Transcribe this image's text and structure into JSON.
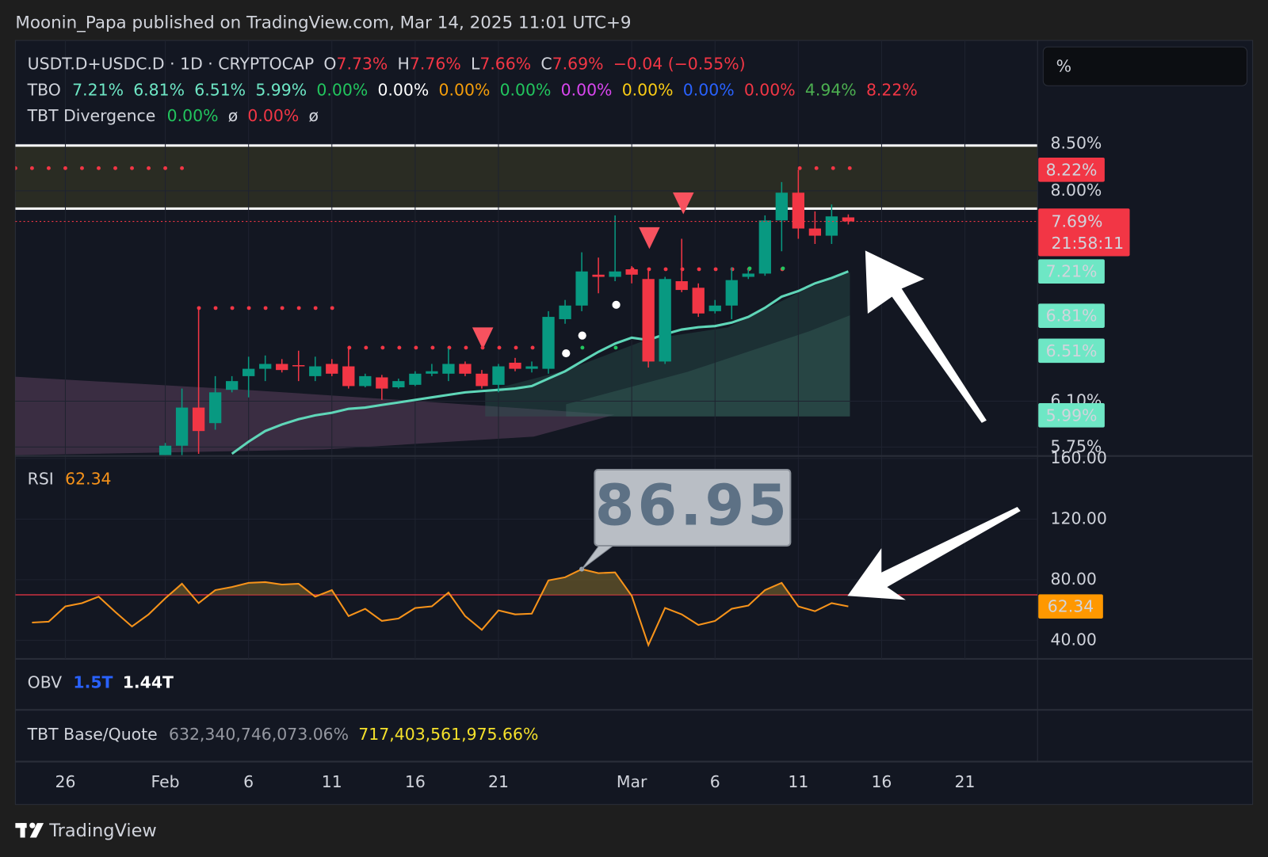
{
  "header": {
    "published": "Moonin_Papa published on TradingView.com, Mar 14, 2025 11:01 UTC+9"
  },
  "scale_box": "%",
  "legend": {
    "symbol": "USDT.D+USDC.D · 1D · CRYPTOCAP",
    "o_label": "O",
    "o": "7.73%",
    "h_label": "H",
    "h": "7.76%",
    "l_label": "L",
    "l": "7.66%",
    "c_label": "C",
    "c": "7.69%",
    "change": "−0.04 (−0.55%)",
    "color": "#f23645"
  },
  "tbo": {
    "label": "TBO",
    "items": [
      {
        "label": "7.21%",
        "value": 7.21,
        "color": "#6ee7c5"
      },
      {
        "label": "6.81%",
        "value": 6.81,
        "color": "#6ee7c5"
      },
      {
        "label": "6.51%",
        "value": 6.51,
        "color": "#6ee7c5"
      },
      {
        "label": "5.99%",
        "value": 5.99,
        "color": "#6ee7c5"
      },
      {
        "label": "0.00%",
        "color": "#22c55e"
      },
      {
        "label": "0.00%",
        "color": "#ffffff"
      },
      {
        "label": "0.00%",
        "color": "#f59e0b"
      },
      {
        "label": "0.00%",
        "color": "#22c55e"
      },
      {
        "label": "0.00%",
        "color": "#d946ef"
      },
      {
        "label": "0.00%",
        "color": "#facc15"
      },
      {
        "label": "0.00%",
        "color": "#2962ff"
      },
      {
        "label": "0.00%",
        "color": "#f23645"
      },
      {
        "label": "4.94%",
        "color": "#4caf50"
      },
      {
        "label": "8.22%",
        "value": 8.22,
        "color": "#f23645"
      }
    ]
  },
  "tbt_divergence": {
    "label": "TBT Divergence",
    "items": [
      {
        "label": "0.00%",
        "color": "#22c55e"
      },
      {
        "label": "ø",
        "color": "#d1d4dc"
      },
      {
        "label": "0.00%",
        "color": "#f23645"
      },
      {
        "label": "ø",
        "color": "#d1d4dc"
      }
    ]
  },
  "obv": {
    "label": "OBV",
    "items": [
      {
        "label": "1.5T",
        "color": "#2962ff"
      },
      {
        "label": "1.44T",
        "color": "#ffffff"
      }
    ]
  },
  "tbt_base_quote": {
    "label": "TBT Base/Quote",
    "items": [
      {
        "label": "632,340,746,073.06%",
        "color": "#9598a1"
      },
      {
        "label": "717,403,561,975.66%",
        "color": "#f5e12b"
      }
    ]
  },
  "footer": {
    "brand": "TradingView"
  },
  "chart_data": [
    {
      "type": "candlestick",
      "categories": [
        null,
        null,
        "26",
        null,
        null,
        null,
        null,
        null,
        "Feb",
        null,
        null,
        null,
        null,
        "6",
        null,
        null,
        null,
        null,
        "11",
        null,
        null,
        null,
        null,
        "16",
        null,
        null,
        null,
        null,
        "21",
        null,
        null,
        null,
        null,
        null,
        null,
        null,
        "Mar",
        null,
        null,
        null,
        null,
        "6",
        null,
        null,
        null,
        null,
        "11",
        null,
        null,
        null,
        null,
        "16",
        null,
        null,
        null,
        null,
        "21",
        null,
        null,
        null,
        null
      ],
      "open": [
        null,
        null,
        null,
        null,
        null,
        null,
        null,
        null,
        5.69,
        5.76,
        6.05,
        5.93,
        6.19,
        6.3,
        6.36,
        6.4,
        6.39,
        6.3,
        6.4,
        6.38,
        6.22,
        6.29,
        6.21,
        6.23,
        6.32,
        6.32,
        6.4,
        6.32,
        6.23,
        6.41,
        6.36,
        6.36,
        6.78,
        6.9,
        7.18,
        7.16,
        7.23,
        7.14,
        6.42,
        7.12,
        7.06,
        6.85,
        6.9,
        7.16,
        7.19,
        7.7,
        7.98,
        7.62,
        7.55,
        7.73,
        null,
        null,
        null,
        null,
        null,
        null,
        null,
        null,
        null,
        null,
        null
      ],
      "high": [
        null,
        null,
        null,
        null,
        null,
        null,
        null,
        null,
        5.78,
        6.2,
        6.88,
        6.3,
        6.3,
        6.46,
        6.47,
        6.44,
        6.51,
        6.46,
        6.44,
        6.53,
        6.32,
        6.31,
        6.28,
        6.34,
        6.4,
        6.53,
        6.42,
        6.35,
        6.4,
        6.45,
        6.42,
        6.85,
        6.95,
        7.39,
        7.34,
        7.75,
        7.26,
        7.24,
        7.16,
        7.52,
        7.1,
        6.95,
        7.25,
        7.23,
        7.75,
        8.09,
        8.22,
        7.79,
        7.86,
        7.76,
        null,
        null,
        null,
        null,
        null,
        null,
        null,
        null,
        null,
        null,
        null
      ],
      "low": [
        null,
        null,
        null,
        null,
        null,
        null,
        null,
        null,
        5.67,
        5.69,
        5.7,
        5.88,
        6.17,
        6.13,
        6.26,
        6.33,
        6.26,
        6.26,
        6.3,
        6.2,
        6.21,
        6.11,
        6.2,
        6.22,
        6.3,
        6.26,
        6.3,
        6.2,
        6.17,
        6.34,
        6.33,
        6.32,
        6.74,
        6.85,
        7.01,
        7.12,
        7.1,
        6.37,
        6.4,
        7.02,
        6.8,
        6.83,
        6.78,
        7.14,
        7.17,
        7.4,
        7.52,
        7.47,
        7.47,
        7.66,
        null,
        null,
        null,
        null,
        null,
        null,
        null,
        null,
        null,
        null,
        null
      ],
      "close": [
        null,
        null,
        null,
        null,
        null,
        null,
        null,
        null,
        5.76,
        6.05,
        5.87,
        6.17,
        6.26,
        6.36,
        6.4,
        6.35,
        6.38,
        6.38,
        6.32,
        6.22,
        6.3,
        6.2,
        6.26,
        6.32,
        6.34,
        6.4,
        6.32,
        6.22,
        6.38,
        6.36,
        6.38,
        6.8,
        6.9,
        7.21,
        7.16,
        7.21,
        7.18,
        6.42,
        7.14,
        7.04,
        6.83,
        6.9,
        7.13,
        7.19,
        7.7,
        7.98,
        7.62,
        7.55,
        7.74,
        7.69,
        null,
        null,
        null,
        null,
        null,
        null,
        null,
        null,
        null,
        null,
        null
      ],
      "up_color": "#089981",
      "down_color": "#f23645",
      "overlay": {
        "color": "#5fd6b8",
        "values": [
          null,
          null,
          null,
          null,
          null,
          null,
          null,
          null,
          null,
          null,
          null,
          null,
          5.7,
          5.79,
          5.87,
          5.92,
          5.96,
          5.99,
          6.01,
          6.04,
          6.05,
          6.07,
          6.09,
          6.11,
          6.13,
          6.15,
          6.17,
          6.18,
          6.19,
          6.2,
          6.22,
          6.28,
          6.34,
          6.42,
          6.5,
          6.57,
          6.62,
          6.6,
          6.65,
          6.69,
          6.71,
          6.72,
          6.75,
          6.8,
          6.88,
          6.98,
          7.03,
          7.1,
          7.15,
          7.21,
          null,
          null,
          null,
          null,
          null,
          null,
          null,
          null,
          null,
          null,
          null
        ]
      },
      "countdown": "21:58:11",
      "log_scale": true,
      "ylim": [
        5.69,
        9.71
      ],
      "yticks": [
        {
          "value": 5.75,
          "label": "5.75%"
        },
        {
          "value": 6.1,
          "label": "6.10%"
        },
        {
          "value": 8,
          "label": "8.00%"
        },
        {
          "value": 8.5,
          "label": "8.50%"
        }
      ],
      "grid": true
    },
    {
      "type": "line",
      "title": "RSI",
      "color": "#f7931a",
      "values": [
        51.7,
        52.3,
        62.4,
        64.5,
        68.8,
        58.7,
        49.1,
        57.1,
        67.7,
        77.3,
        64.5,
        73.1,
        75.2,
        77.9,
        78.4,
        76.8,
        77.3,
        68.8,
        73.1,
        56.0,
        60.8,
        52.8,
        54.4,
        61.3,
        62.4,
        71.5,
        56.0,
        46.9,
        59.7,
        57.1,
        57.6,
        79.5,
        81.6,
        86.95,
        84.3,
        84.8,
        69.3,
        36.8,
        61.3,
        57.1,
        50.1,
        52.8,
        60.8,
        62.9,
        73.1,
        77.9,
        62.4,
        59.2,
        64.5,
        62.34,
        null,
        null,
        null,
        null,
        null,
        null,
        null,
        null,
        null,
        null,
        null
      ],
      "value_labels": [
        null,
        null,
        null,
        null,
        null,
        null,
        null,
        null,
        null,
        null,
        null,
        null,
        null,
        null,
        null,
        null,
        null,
        null,
        null,
        null,
        null,
        null,
        null,
        null,
        null,
        null,
        null,
        null,
        null,
        null,
        null,
        null,
        null,
        "86.95",
        null,
        null,
        null,
        null,
        null,
        null,
        null,
        null,
        null,
        null,
        null,
        null,
        null,
        null,
        null,
        null,
        null,
        null,
        null,
        null,
        null,
        null,
        null,
        null,
        null,
        null,
        null
      ],
      "level_line": 70,
      "level_color": "#f23645",
      "ylim": [
        27.7,
        161.1
      ],
      "yticks": [
        {
          "value": 40,
          "label": "40.00"
        },
        {
          "value": 80,
          "label": "80.00"
        },
        {
          "value": 120,
          "label": "120.00"
        },
        {
          "value": 160,
          "label": "160.00"
        }
      ],
      "grid": true
    }
  ]
}
